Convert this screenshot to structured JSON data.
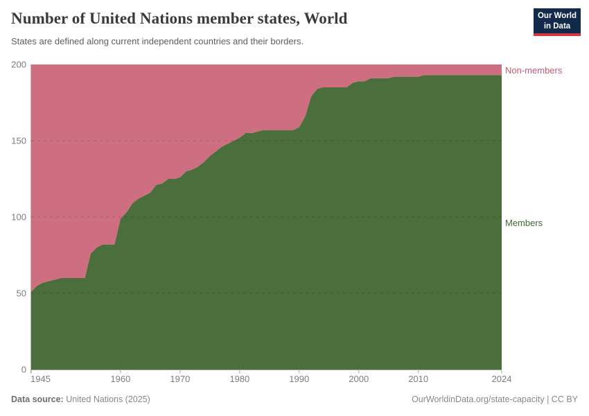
{
  "header": {
    "logo": {
      "line1": "Our World",
      "line2": "in Data",
      "bg_color": "#12294b",
      "accent_color": "#d0393f"
    }
  },
  "footer": {
    "source_label": "Data source:",
    "source_value": " United Nations (2025)",
    "link": "OurWorldinData.org/state-capacity",
    "separator": " | ",
    "license": "CC BY"
  },
  "chart_data": {
    "type": "area",
    "stacked": true,
    "title": "Number of United Nations member states, World",
    "subtitle": "States are defined along current independent countries and their borders.",
    "xlabel": "",
    "ylabel": "",
    "xlim": [
      1945,
      2024
    ],
    "ylim": [
      0,
      200
    ],
    "total_states": 200,
    "grid": "horizontal-dashed",
    "grid_y": [
      50,
      100,
      150
    ],
    "yticks": [
      0,
      50,
      100,
      150,
      200
    ],
    "xticks": {
      "values": [
        1945,
        1960,
        1970,
        1980,
        1990,
        2000,
        2010,
        2024
      ],
      "labels": [
        "1945",
        "1960",
        "1970",
        "1980",
        "1990",
        "2000",
        "2010",
        "2024"
      ]
    },
    "legend": "inline-right-labels",
    "x": [
      1945,
      1946,
      1947,
      1948,
      1949,
      1950,
      1951,
      1952,
      1953,
      1954,
      1955,
      1956,
      1957,
      1958,
      1959,
      1960,
      1961,
      1962,
      1963,
      1964,
      1965,
      1966,
      1967,
      1968,
      1969,
      1970,
      1971,
      1972,
      1973,
      1974,
      1975,
      1976,
      1977,
      1978,
      1979,
      1980,
      1981,
      1982,
      1983,
      1984,
      1985,
      1986,
      1987,
      1988,
      1989,
      1990,
      1991,
      1992,
      1993,
      1994,
      1995,
      1996,
      1997,
      1998,
      1999,
      2000,
      2001,
      2002,
      2003,
      2004,
      2005,
      2006,
      2007,
      2008,
      2009,
      2010,
      2011,
      2012,
      2013,
      2014,
      2015,
      2016,
      2017,
      2018,
      2019,
      2020,
      2021,
      2022,
      2023,
      2024
    ],
    "series": [
      {
        "name": "Members",
        "color": "#4a6e3c",
        "label_color": "#3c6a32",
        "values": [
          51,
          55,
          57,
          58,
          59,
          60,
          60,
          60,
          60,
          60,
          76,
          80,
          82,
          82,
          82,
          99,
          103,
          109,
          112,
          114,
          116,
          121,
          122,
          125,
          125,
          126,
          130,
          131,
          133,
          136,
          140,
          143,
          146,
          148,
          150,
          152,
          155,
          155,
          156,
          157,
          157,
          157,
          157,
          157,
          157,
          159,
          166,
          179,
          184,
          185,
          185,
          185,
          185,
          185,
          188,
          189,
          189,
          191,
          191,
          191,
          191,
          192,
          192,
          192,
          192,
          192,
          193,
          193,
          193,
          193,
          193,
          193,
          193,
          193,
          193,
          193,
          193,
          193,
          193,
          193
        ]
      },
      {
        "name": "Non-members",
        "color": "#cd6f81",
        "label_color": "#c25b73",
        "values": [
          149,
          145,
          143,
          142,
          141,
          140,
          140,
          140,
          140,
          140,
          124,
          120,
          118,
          118,
          118,
          101,
          97,
          91,
          88,
          86,
          84,
          79,
          78,
          75,
          75,
          74,
          70,
          69,
          67,
          64,
          60,
          57,
          54,
          52,
          50,
          48,
          45,
          45,
          44,
          43,
          43,
          43,
          43,
          43,
          43,
          41,
          34,
          21,
          16,
          15,
          15,
          15,
          15,
          15,
          12,
          11,
          11,
          9,
          9,
          9,
          9,
          8,
          8,
          8,
          8,
          8,
          7,
          7,
          7,
          7,
          7,
          7,
          7,
          7,
          7,
          7,
          7,
          7,
          7,
          7
        ]
      }
    ]
  }
}
